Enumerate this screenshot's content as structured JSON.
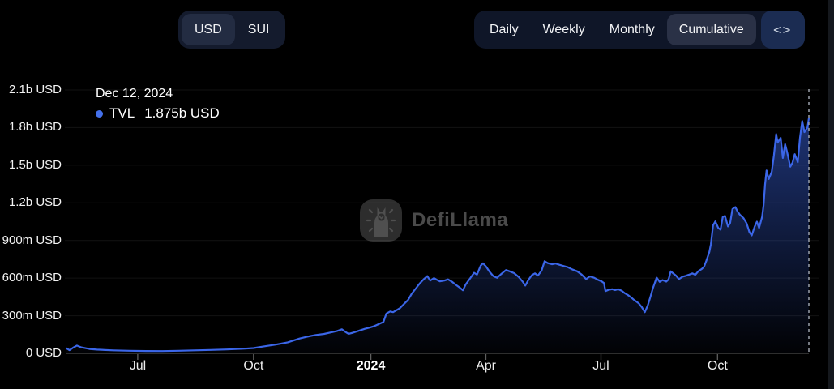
{
  "header": {
    "currency_toggle": {
      "options": [
        "USD",
        "SUI"
      ],
      "selected": "USD"
    },
    "interval_tabs": {
      "options": [
        "Daily",
        "Weekly",
        "Monthly",
        "Cumulative"
      ],
      "selected": "Cumulative"
    },
    "embed_icon_glyph": "<>"
  },
  "tooltip": {
    "date": "Dec 12, 2024",
    "series": "TVL",
    "value": "1.875b USD",
    "dot_color": "#4470eb"
  },
  "watermark": {
    "text": "DefiLlama"
  },
  "chart_data": {
    "type": "area",
    "title": "",
    "xlabel": "",
    "ylabel": "",
    "unit": "millions USD",
    "y_max": 2100,
    "grid": true,
    "crosshair": {
      "t": 1.0,
      "style": "dashed"
    },
    "y_ticks": [
      {
        "label": "0 USD",
        "value": 0
      },
      {
        "label": "300m USD",
        "value": 300
      },
      {
        "label": "600m USD",
        "value": 600
      },
      {
        "label": "900m USD",
        "value": 900
      },
      {
        "label": "1.2b USD",
        "value": 1200
      },
      {
        "label": "1.5b USD",
        "value": 1500
      },
      {
        "label": "1.8b USD",
        "value": 1800
      },
      {
        "label": "2.1b USD",
        "value": 2100
      }
    ],
    "x_ticks": [
      {
        "label": "Jul",
        "t": 0.096,
        "bold": false
      },
      {
        "label": "Oct",
        "t": 0.252,
        "bold": false
      },
      {
        "label": "2024",
        "t": 0.41,
        "bold": true
      },
      {
        "label": "Apr",
        "t": 0.565,
        "bold": false
      },
      {
        "label": "Jul",
        "t": 0.72,
        "bold": false
      },
      {
        "label": "Oct",
        "t": 0.877,
        "bold": false
      }
    ],
    "series": [
      {
        "name": "TVL",
        "color": "#3b66e8",
        "points": [
          [
            0,
            40
          ],
          [
            0.004,
            25
          ],
          [
            0.009,
            45
          ],
          [
            0.014,
            62
          ],
          [
            0.02,
            48
          ],
          [
            0.031,
            35
          ],
          [
            0.041,
            30
          ],
          [
            0.063,
            24
          ],
          [
            0.085,
            21
          ],
          [
            0.107,
            19
          ],
          [
            0.129,
            18
          ],
          [
            0.151,
            21
          ],
          [
            0.172,
            24
          ],
          [
            0.194,
            27
          ],
          [
            0.216,
            31
          ],
          [
            0.238,
            37
          ],
          [
            0.252,
            42
          ],
          [
            0.265,
            54
          ],
          [
            0.282,
            70
          ],
          [
            0.298,
            88
          ],
          [
            0.314,
            118
          ],
          [
            0.325,
            134
          ],
          [
            0.336,
            147
          ],
          [
            0.347,
            155
          ],
          [
            0.356,
            167
          ],
          [
            0.364,
            177
          ],
          [
            0.371,
            192
          ],
          [
            0.376,
            170
          ],
          [
            0.38,
            156
          ],
          [
            0.386,
            165
          ],
          [
            0.394,
            180
          ],
          [
            0.402,
            196
          ],
          [
            0.408,
            205
          ],
          [
            0.415,
            218
          ],
          [
            0.421,
            234
          ],
          [
            0.427,
            250
          ],
          [
            0.431,
            318
          ],
          [
            0.436,
            334
          ],
          [
            0.44,
            328
          ],
          [
            0.444,
            342
          ],
          [
            0.449,
            360
          ],
          [
            0.454,
            390
          ],
          [
            0.46,
            425
          ],
          [
            0.465,
            474
          ],
          [
            0.471,
            520
          ],
          [
            0.476,
            558
          ],
          [
            0.481,
            590
          ],
          [
            0.486,
            616
          ],
          [
            0.49,
            580
          ],
          [
            0.495,
            600
          ],
          [
            0.499,
            586
          ],
          [
            0.503,
            574
          ],
          [
            0.509,
            580
          ],
          [
            0.514,
            590
          ],
          [
            0.52,
            568
          ],
          [
            0.525,
            545
          ],
          [
            0.531,
            518
          ],
          [
            0.534,
            503
          ],
          [
            0.538,
            552
          ],
          [
            0.544,
            600
          ],
          [
            0.549,
            642
          ],
          [
            0.553,
            628
          ],
          [
            0.558,
            700
          ],
          [
            0.561,
            718
          ],
          [
            0.565,
            694
          ],
          [
            0.57,
            650
          ],
          [
            0.575,
            616
          ],
          [
            0.58,
            602
          ],
          [
            0.585,
            630
          ],
          [
            0.592,
            664
          ],
          [
            0.597,
            654
          ],
          [
            0.603,
            640
          ],
          [
            0.609,
            610
          ],
          [
            0.615,
            568
          ],
          [
            0.618,
            540
          ],
          [
            0.622,
            584
          ],
          [
            0.627,
            624
          ],
          [
            0.631,
            638
          ],
          [
            0.635,
            620
          ],
          [
            0.64,
            660
          ],
          [
            0.644,
            735
          ],
          [
            0.648,
            720
          ],
          [
            0.654,
            710
          ],
          [
            0.659,
            716
          ],
          [
            0.664,
            706
          ],
          [
            0.669,
            698
          ],
          [
            0.675,
            688
          ],
          [
            0.681,
            670
          ],
          [
            0.688,
            654
          ],
          [
            0.694,
            628
          ],
          [
            0.7,
            592
          ],
          [
            0.705,
            614
          ],
          [
            0.711,
            602
          ],
          [
            0.716,
            586
          ],
          [
            0.721,
            574
          ],
          [
            0.724,
            560
          ],
          [
            0.726,
            496
          ],
          [
            0.73,
            506
          ],
          [
            0.735,
            512
          ],
          [
            0.739,
            504
          ],
          [
            0.743,
            512
          ],
          [
            0.748,
            498
          ],
          [
            0.752,
            480
          ],
          [
            0.757,
            462
          ],
          [
            0.761,
            444
          ],
          [
            0.765,
            424
          ],
          [
            0.771,
            398
          ],
          [
            0.775,
            368
          ],
          [
            0.779,
            328
          ],
          [
            0.783,
            382
          ],
          [
            0.786,
            440
          ],
          [
            0.79,
            520
          ],
          [
            0.795,
            604
          ],
          [
            0.799,
            570
          ],
          [
            0.803,
            584
          ],
          [
            0.808,
            572
          ],
          [
            0.811,
            590
          ],
          [
            0.814,
            654
          ],
          [
            0.818,
            634
          ],
          [
            0.821,
            620
          ],
          [
            0.825,
            592
          ],
          [
            0.83,
            612
          ],
          [
            0.834,
            618
          ],
          [
            0.838,
            626
          ],
          [
            0.843,
            638
          ],
          [
            0.847,
            626
          ],
          [
            0.851,
            654
          ],
          [
            0.856,
            674
          ],
          [
            0.859,
            692
          ],
          [
            0.862,
            740
          ],
          [
            0.866,
            810
          ],
          [
            0.868,
            870
          ],
          [
            0.871,
            1020
          ],
          [
            0.874,
            1052
          ],
          [
            0.878,
            1000
          ],
          [
            0.881,
            986
          ],
          [
            0.884,
            1086
          ],
          [
            0.887,
            1096
          ],
          [
            0.891,
            1012
          ],
          [
            0.894,
            1040
          ],
          [
            0.897,
            1150
          ],
          [
            0.901,
            1166
          ],
          [
            0.904,
            1130
          ],
          [
            0.907,
            1106
          ],
          [
            0.912,
            1078
          ],
          [
            0.916,
            1038
          ],
          [
            0.92,
            966
          ],
          [
            0.923,
            940
          ],
          [
            0.927,
            1010
          ],
          [
            0.93,
            1050
          ],
          [
            0.933,
            1000
          ],
          [
            0.937,
            1088
          ],
          [
            0.939,
            1180
          ],
          [
            0.941,
            1350
          ],
          [
            0.943,
            1458
          ],
          [
            0.946,
            1390
          ],
          [
            0.95,
            1448
          ],
          [
            0.953,
            1580
          ],
          [
            0.956,
            1748
          ],
          [
            0.958,
            1680
          ],
          [
            0.962,
            1718
          ],
          [
            0.965,
            1558
          ],
          [
            0.968,
            1668
          ],
          [
            0.971,
            1598
          ],
          [
            0.975,
            1488
          ],
          [
            0.978,
            1520
          ],
          [
            0.981,
            1588
          ],
          [
            0.985,
            1524
          ],
          [
            0.988,
            1718
          ],
          [
            0.991,
            1852
          ],
          [
            0.994,
            1764
          ],
          [
            0.998,
            1800
          ],
          [
            1,
            1875
          ]
        ]
      }
    ]
  }
}
